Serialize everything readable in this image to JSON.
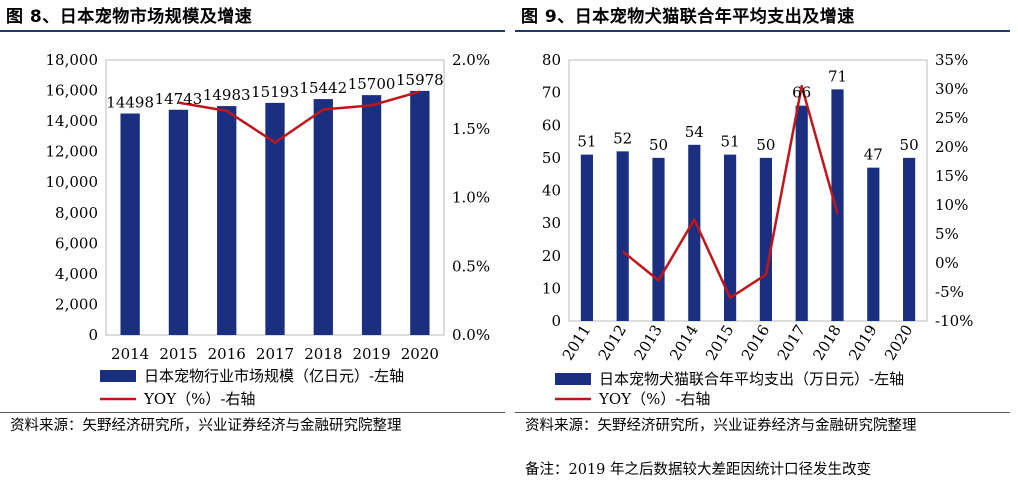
{
  "left_figure": {
    "title": "图 8、日本宠物市场规模及增速",
    "source": "资料来源：矢野经济研究所，兴业证券经济与金融研究院整理"
  },
  "right_figure": {
    "title": "图 9、日本宠物犬猫联合年平均支出及增速",
    "source": "资料来源：矢野经济研究所，兴业证券经济与金融研究院整理",
    "note": "备注：2019 年之后数据较大差距因统计口径发生改变"
  },
  "colors": {
    "bar": "#1a2f80",
    "line": "#c0161b",
    "rule": "#1f3a6e"
  },
  "chart_data": [
    {
      "type": "bar",
      "title": "图 8、日本宠物市场规模及增速",
      "categories": [
        "2014",
        "2015",
        "2016",
        "2017",
        "2018",
        "2019",
        "2020"
      ],
      "series": [
        {
          "name": "日本宠物行业市场规模（亿日元）-左轴",
          "axis": "left",
          "type": "bar",
          "values": [
            14498,
            14743,
            14983,
            15193,
            15442,
            15700,
            15978
          ],
          "data_labels": [
            "14498",
            "14743",
            "14983",
            "15193",
            "15442",
            "15700",
            "15978"
          ]
        },
        {
          "name": "YOY（%）-右轴",
          "axis": "right",
          "type": "line",
          "values": [
            null,
            1.69,
            1.63,
            1.4,
            1.64,
            1.67,
            1.77
          ]
        }
      ],
      "y_left": {
        "min": 0,
        "max": 18000,
        "ticks": [
          0,
          2000,
          4000,
          6000,
          8000,
          10000,
          12000,
          14000,
          16000,
          18000
        ],
        "tick_labels": [
          "0",
          "2,000",
          "4,000",
          "6,000",
          "8,000",
          "10,000",
          "12,000",
          "14,000",
          "16,000",
          "18,000"
        ]
      },
      "y_right": {
        "min": 0,
        "max": 2.0,
        "ticks": [
          0,
          0.5,
          1.0,
          1.5,
          2.0
        ],
        "tick_labels": [
          "0.0%",
          "0.5%",
          "1.0%",
          "1.5%",
          "2.0%"
        ]
      },
      "legend": [
        "日本宠物行业市场规模（亿日元）-左轴",
        "YOY（%）-右轴"
      ],
      "legend_position": "bottom"
    },
    {
      "type": "bar",
      "title": "图 9、日本宠物犬猫联合年平均支出及增速",
      "categories": [
        "2011",
        "2012",
        "2013",
        "2014",
        "2015",
        "2016",
        "2017",
        "2018",
        "2019",
        "2020"
      ],
      "series": [
        {
          "name": "日本宠物犬猫联合年平均支出（万日元）-左轴",
          "axis": "left",
          "type": "bar",
          "values": [
            51,
            52,
            50,
            54,
            51,
            50,
            66,
            71,
            47,
            50
          ],
          "data_labels": [
            "51",
            "52",
            "50",
            "54",
            "51",
            "50",
            "66",
            "71",
            "47",
            "50"
          ]
        },
        {
          "name": "YOY（%）-右轴",
          "axis": "right",
          "type": "line",
          "values": [
            null,
            2.0,
            -3.0,
            7.5,
            -6.0,
            -2.0,
            30.5,
            8.5,
            null,
            null
          ]
        }
      ],
      "y_left": {
        "min": 0,
        "max": 80,
        "ticks": [
          0,
          10,
          20,
          30,
          40,
          50,
          60,
          70,
          80
        ],
        "tick_labels": [
          "0",
          "10",
          "20",
          "30",
          "40",
          "50",
          "60",
          "70",
          "80"
        ]
      },
      "y_right": {
        "min": -10,
        "max": 35,
        "ticks": [
          -10,
          -5,
          0,
          5,
          10,
          15,
          20,
          25,
          30,
          35
        ],
        "tick_labels": [
          "-10%",
          "-5%",
          "0%",
          "5%",
          "10%",
          "15%",
          "20%",
          "25%",
          "30%",
          "35%"
        ]
      },
      "legend": [
        "日本宠物犬猫联合年平均支出（万日元）-左轴",
        "YOY（%）-右轴"
      ],
      "legend_position": "bottom"
    }
  ]
}
